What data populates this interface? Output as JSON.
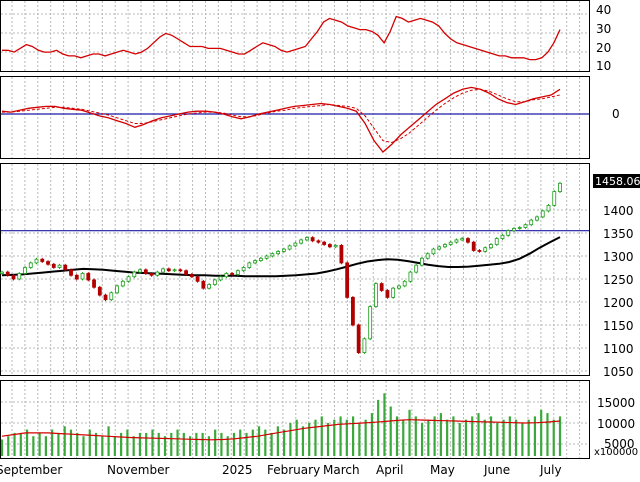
{
  "chart_data": {
    "type": "stock-chart",
    "months": [
      "September",
      "November",
      "2025",
      "February",
      "March",
      "April",
      "May",
      "June",
      "July"
    ],
    "last_price_label": "1458.060",
    "volume_multiplier_label": "x100000",
    "rsi_panel": {
      "ticks": [
        "40",
        "30",
        "20",
        "10"
      ],
      "values": [
        18,
        18,
        17,
        19,
        21,
        20,
        18,
        17,
        17,
        18,
        16,
        15,
        15,
        14,
        15,
        16,
        16,
        15,
        16,
        17,
        18,
        17,
        16,
        17,
        19,
        22,
        25,
        27,
        26,
        24,
        22,
        20,
        20,
        20,
        19,
        19,
        19,
        18,
        17,
        16,
        16,
        18,
        20,
        22,
        21,
        20,
        18,
        17,
        18,
        19,
        20,
        24,
        28,
        33,
        35,
        34,
        33,
        31,
        30,
        29,
        29,
        28,
        26,
        22,
        28,
        36,
        35,
        33,
        34,
        35,
        34,
        33,
        31,
        27,
        24,
        22,
        21,
        20,
        19,
        18,
        17,
        16,
        15,
        15,
        14,
        14,
        14,
        13,
        13,
        14,
        17,
        22,
        29
      ]
    },
    "macd_panel": {
      "ticks": [
        "0"
      ],
      "macd": [
        3,
        2,
        4,
        6,
        7,
        8,
        8,
        6,
        5,
        4,
        1,
        -2,
        -4,
        -7,
        -10,
        -14,
        -11,
        -7,
        -4,
        -2,
        0,
        2,
        3,
        3,
        2,
        0,
        -3,
        -5,
        -3,
        0,
        2,
        4,
        6,
        8,
        9,
        10,
        11,
        10,
        8,
        6,
        3,
        -10,
        -28,
        -40,
        -32,
        -22,
        -14,
        -6,
        2,
        10,
        16,
        22,
        26,
        28,
        26,
        22,
        16,
        12,
        10,
        13,
        16,
        18,
        20,
        26
      ],
      "signal": [
        2,
        2,
        3,
        4,
        5,
        6,
        7,
        7,
        6,
        5,
        3,
        1,
        -1,
        -4,
        -7,
        -10,
        -10,
        -8,
        -6,
        -4,
        -2,
        0,
        1,
        2,
        2,
        1,
        -1,
        -3,
        -3,
        -1,
        1,
        3,
        4,
        6,
        7,
        8,
        9,
        10,
        9,
        8,
        6,
        -2,
        -15,
        -28,
        -30,
        -26,
        -20,
        -12,
        -4,
        4,
        11,
        17,
        22,
        25,
        26,
        24,
        20,
        16,
        13,
        13,
        15,
        16,
        18,
        20
      ]
    },
    "price_panel": {
      "ticks": [
        "1400",
        "1350",
        "1300",
        "1250",
        "1200",
        "1150",
        "1100",
        "1050"
      ],
      "horizontal_line": 1355,
      "closes": [
        1265,
        1258,
        1250,
        1262,
        1275,
        1285,
        1293,
        1288,
        1282,
        1275,
        1280,
        1270,
        1258,
        1250,
        1262,
        1248,
        1232,
        1215,
        1205,
        1220,
        1235,
        1245,
        1255,
        1265,
        1270,
        1262,
        1258,
        1265,
        1272,
        1268,
        1270,
        1268,
        1260,
        1255,
        1245,
        1230,
        1238,
        1248,
        1255,
        1262,
        1260,
        1268,
        1275,
        1285,
        1290,
        1295,
        1300,
        1305,
        1310,
        1315,
        1322,
        1328,
        1335,
        1340,
        1333,
        1330,
        1325,
        1320,
        1323,
        1285,
        1210,
        1150,
        1090,
        1120,
        1190,
        1240,
        1225,
        1210,
        1230,
        1235,
        1245,
        1265,
        1280,
        1295,
        1305,
        1315,
        1320,
        1325,
        1330,
        1335,
        1338,
        1330,
        1312,
        1310,
        1318,
        1325,
        1338,
        1345,
        1355,
        1360,
        1362,
        1368,
        1378,
        1385,
        1398,
        1410,
        1440,
        1458
      ],
      "ma": [
        1258,
        1259,
        1260,
        1262,
        1264,
        1266,
        1268,
        1270,
        1272,
        1271,
        1270,
        1268,
        1266,
        1264,
        1263,
        1262,
        1261,
        1260,
        1259,
        1258,
        1258,
        1257,
        1257,
        1257,
        1256,
        1256,
        1256,
        1256,
        1257,
        1258,
        1260,
        1262,
        1266,
        1271,
        1277,
        1283,
        1288,
        1291,
        1293,
        1292,
        1289,
        1285,
        1281,
        1278,
        1276,
        1276,
        1277,
        1279,
        1281,
        1283,
        1287,
        1294,
        1305,
        1318,
        1330,
        1341
      ]
    },
    "volume_panel": {
      "ticks": [
        "15000",
        "10000",
        "5000"
      ],
      "bars": [
        5,
        6,
        7,
        7,
        8,
        6,
        7,
        6,
        8,
        7,
        9,
        8,
        7,
        6,
        8,
        7,
        6,
        9,
        6,
        7,
        8,
        6,
        7,
        7,
        8,
        7,
        6,
        7,
        8,
        7,
        6,
        7,
        7,
        6,
        8,
        7,
        6,
        7,
        8,
        7,
        8,
        9,
        8,
        7,
        9,
        8,
        10,
        11,
        9,
        10,
        11,
        12,
        10,
        11,
        12,
        11,
        12,
        10,
        11,
        13,
        17,
        19,
        15,
        12,
        11,
        14,
        12,
        10,
        11,
        12,
        13,
        11,
        12,
        10,
        11,
        12,
        13,
        11,
        12,
        10,
        11,
        12,
        11,
        10,
        11,
        12,
        14,
        13,
        11,
        12
      ],
      "ma": [
        6,
        6.5,
        7,
        7,
        7,
        6.8,
        6.6,
        6.4,
        6.2,
        6,
        5.8,
        5.6,
        5.5,
        5.4,
        5.3,
        5.2,
        5.1,
        5,
        4.9,
        5,
        5.2,
        5.6,
        6,
        6.6,
        7.2,
        7.8,
        8.4,
        8.8,
        9.2,
        9.6,
        9.8,
        10,
        10.2,
        10.5,
        10.8,
        11,
        10.9,
        10.8,
        10.7,
        10.6,
        10.5,
        10.4,
        10.3,
        10.2,
        10.1,
        10,
        10.1,
        10.3,
        10.6
      ]
    }
  },
  "colors": {
    "grid": "#b8b8b8",
    "red": "#d40000",
    "blue": "#1a1aa8",
    "up_candle": "#1c9e1c",
    "down_candle": "#b00000",
    "volume_bar": "#3aa83a",
    "black": "#000000"
  }
}
